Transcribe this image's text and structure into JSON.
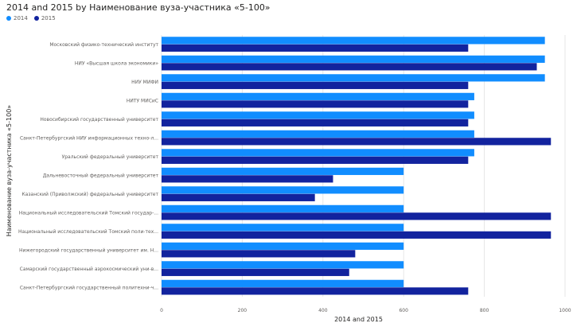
{
  "title": "2014 and 2015 by Наименование вуза-участника «5-100»",
  "legend": [
    {
      "label": "2014",
      "color": "#118DFF"
    },
    {
      "label": "2015",
      "color": "#12239E"
    }
  ],
  "chart_data": {
    "type": "bar",
    "orientation": "horizontal",
    "title": "2014 and 2015 by Наименование вуза-участника «5-100»",
    "xlabel": "2014 and 2015",
    "ylabel": "Наименование вуза-участника «5-100»",
    "xlim": [
      0,
      1000
    ],
    "xticks": [
      "0",
      "200",
      "400",
      "600",
      "800",
      "1000"
    ],
    "grid": true,
    "legend_position": "top-left",
    "categories": [
      "Московский физико-технический институт",
      "НИУ «Высшая школа экономики»",
      "НИУ МИФИ",
      "НИТУ МИСиС",
      "Новосибирский государственный университет",
      "Санкт-Петербургский НИУ информационных техно-л...",
      "Уральский федеральный университет",
      "Дальневосточный федеральный университет",
      "Казанский (Приволжский) федеральный университет",
      "Национальный исследовательский Томский государ-...",
      "Национальный исследовательский Томский поли-тех...",
      "Нижегородский государственный университет им. Н...",
      "Самарский государственный аэрокосмический уни-в...",
      "Санкт-Петербургский государственный политехни-ч..."
    ],
    "series": [
      {
        "name": "2014",
        "color": "#118DFF",
        "values": [
          950,
          950,
          950,
          775,
          775,
          775,
          775,
          600,
          600,
          600,
          600,
          600,
          600,
          600
        ]
      },
      {
        "name": "2015",
        "color": "#12239E",
        "values": [
          760,
          930,
          760,
          760,
          760,
          965,
          760,
          425,
          380,
          965,
          965,
          480,
          465,
          760
        ]
      }
    ]
  }
}
